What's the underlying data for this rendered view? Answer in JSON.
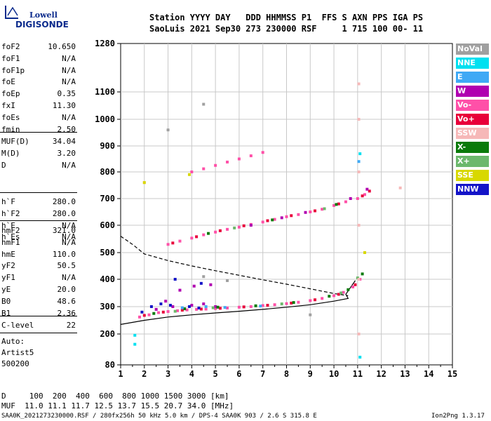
{
  "logo": {
    "line1": "Lowell",
    "line2": "DIGISONDE"
  },
  "header": {
    "line1": "Station YYYY DAY   DDD HHMMSS P1  FFS S AXN PPS IGA PS",
    "line2": "SaoLuis 2021 Sep30 273 230000 RSF     1 715 100 00- 11"
  },
  "params": {
    "group1": [
      {
        "name": "foF2",
        "value": "10.650"
      },
      {
        "name": "foF1",
        "value": "N/A"
      },
      {
        "name": "foF1p",
        "value": "N/A"
      },
      {
        "name": "foE",
        "value": "N/A"
      },
      {
        "name": "foEp",
        "value": "0.35"
      },
      {
        "name": "fxI",
        "value": "11.30"
      },
      {
        "name": "foEs",
        "value": "N/A"
      },
      {
        "name": "fmin",
        "value": "2.50"
      }
    ],
    "group2": [
      {
        "name": "MUF(D)",
        "value": "34.04"
      },
      {
        "name": "M(D)",
        "value": "3.20"
      },
      {
        "name": "D",
        "value": "N/A"
      }
    ],
    "group3": [
      {
        "name": "h`F",
        "value": "280.0"
      },
      {
        "name": "h`F2",
        "value": "280.0"
      },
      {
        "name": "h`E",
        "value": "N/A"
      },
      {
        "name": "h`Es",
        "value": "N/A"
      }
    ],
    "group4": [
      {
        "name": "hmF2",
        "value": "321.0"
      },
      {
        "name": "hmF1",
        "value": "N/A"
      },
      {
        "name": "hmE",
        "value": "110.0"
      },
      {
        "name": "yF2",
        "value": "50.5"
      },
      {
        "name": "yF1",
        "value": "N/A"
      },
      {
        "name": "yE",
        "value": "20.0"
      },
      {
        "name": "B0",
        "value": "48.6"
      },
      {
        "name": "B1",
        "value": "2.36"
      }
    ],
    "group5": [
      {
        "name": "C-level",
        "value": "22"
      }
    ],
    "auto": [
      "Auto:",
      "Artist5",
      "500200"
    ]
  },
  "legend": [
    {
      "label": "NoVal",
      "color": "#a0a0a0"
    },
    {
      "label": "NNE",
      "color": "#00e0f0"
    },
    {
      "label": "E",
      "color": "#3fa9f5"
    },
    {
      "label": "W",
      "color": "#b000b0"
    },
    {
      "label": "Vo-",
      "color": "#ff50a8"
    },
    {
      "label": "Vo+",
      "color": "#e8003a"
    },
    {
      "label": "SSW",
      "color": "#f6b8b8"
    },
    {
      "label": "X-",
      "color": "#0a7a0a"
    },
    {
      "label": "X+",
      "color": "#6cb86c"
    },
    {
      "label": "SSE",
      "color": "#d8d800"
    },
    {
      "label": "NNW",
      "color": "#1414c8"
    }
  ],
  "footer": {
    "line1": "D     100  200  400  600  800 1000 1500 3000 [km]",
    "line2": "MUF  11.0 11.1 11.7 12.5 13.7 15.5 20.7 34.0 [MHz]",
    "line3": "SAA0K_2021273230000.RSF / 280fx256h 50 kHz 5.0 km / DPS-4 SAA0K 903 / 2.6 S 315.8 E",
    "version": "Ion2Png 1.3.17"
  },
  "chart_data": {
    "type": "scatter",
    "xlim": [
      1,
      15
    ],
    "ylim": [
      80,
      1280
    ],
    "x_ticks": [
      "1",
      "2",
      "3",
      "4",
      "5",
      "6",
      "7",
      "8",
      "9",
      "10",
      "11",
      "12",
      "13",
      "14",
      "15"
    ],
    "y_ticks": [
      "80",
      "200",
      "300",
      "400",
      "500",
      "600",
      "700",
      "800",
      "900",
      "1000",
      "1100",
      "1280"
    ],
    "grid": true,
    "series": [
      {
        "name": "Vo-",
        "color": "#ff50a8",
        "points": [
          [
            1.8,
            262
          ],
          [
            2.2,
            270
          ],
          [
            2.6,
            278
          ],
          [
            3,
            282
          ],
          [
            3.4,
            285
          ],
          [
            3.8,
            288
          ],
          [
            4.2,
            290
          ],
          [
            4.6,
            291
          ],
          [
            5,
            293
          ],
          [
            5.5,
            295
          ],
          [
            6,
            298
          ],
          [
            6.5,
            300
          ],
          [
            7,
            304
          ],
          [
            7.5,
            307
          ],
          [
            8,
            311
          ],
          [
            8.5,
            316
          ],
          [
            9,
            322
          ],
          [
            9.5,
            330
          ],
          [
            10,
            340
          ],
          [
            10.4,
            352
          ],
          [
            10.8,
            372
          ],
          [
            11.1,
            400
          ],
          [
            3,
            530
          ],
          [
            3.5,
            542
          ],
          [
            4,
            553
          ],
          [
            4.5,
            565
          ],
          [
            5,
            575
          ],
          [
            5.5,
            585
          ],
          [
            6,
            593
          ],
          [
            6.5,
            603
          ],
          [
            7,
            612
          ],
          [
            7.5,
            622
          ],
          [
            8,
            632
          ],
          [
            8.5,
            640
          ],
          [
            9,
            650
          ],
          [
            9.5,
            660
          ],
          [
            10,
            674
          ],
          [
            10.5,
            688
          ],
          [
            11,
            700
          ],
          [
            11.3,
            715
          ],
          [
            4,
            800
          ],
          [
            4.5,
            812
          ],
          [
            5,
            825
          ],
          [
            5.5,
            838
          ],
          [
            6,
            850
          ],
          [
            6.5,
            862
          ],
          [
            7,
            875
          ]
        ]
      },
      {
        "name": "Vo+",
        "color": "#e8003a",
        "points": [
          [
            2,
            268
          ],
          [
            2.8,
            280
          ],
          [
            3.6,
            287
          ],
          [
            4.4,
            291
          ],
          [
            5.2,
            294
          ],
          [
            6.2,
            299
          ],
          [
            7.2,
            305
          ],
          [
            8.2,
            313
          ],
          [
            9.2,
            325
          ],
          [
            10.2,
            345
          ],
          [
            10.9,
            380
          ],
          [
            3.2,
            535
          ],
          [
            4.2,
            558
          ],
          [
            5.2,
            580
          ],
          [
            6.2,
            598
          ],
          [
            7.2,
            617
          ],
          [
            8.2,
            636
          ],
          [
            9.2,
            654
          ],
          [
            10.2,
            680
          ],
          [
            11.2,
            710
          ],
          [
            11.5,
            728
          ]
        ]
      },
      {
        "name": "W",
        "color": "#b000b0",
        "points": [
          [
            2.5,
            290
          ],
          [
            3.2,
            300
          ],
          [
            4,
            305
          ],
          [
            4.5,
            310
          ],
          [
            5,
            300
          ],
          [
            2.9,
            320
          ],
          [
            3.5,
            360
          ],
          [
            4.1,
            375
          ],
          [
            4.8,
            380
          ],
          [
            6.5,
            600
          ],
          [
            7.8,
            628
          ],
          [
            8.8,
            648
          ],
          [
            10.7,
            700
          ],
          [
            11.4,
            735
          ]
        ]
      },
      {
        "name": "X-",
        "color": "#0a7a0a",
        "points": [
          [
            2.4,
            275
          ],
          [
            3.7,
            292
          ],
          [
            5.1,
            298
          ],
          [
            6.7,
            303
          ],
          [
            8.3,
            315
          ],
          [
            9.8,
            338
          ],
          [
            10.6,
            362
          ],
          [
            11.2,
            420
          ],
          [
            4.7,
            570
          ],
          [
            7.4,
            620
          ],
          [
            10.1,
            678
          ]
        ]
      },
      {
        "name": "X+",
        "color": "#6cb86c",
        "points": [
          [
            3.3,
            283
          ],
          [
            4.9,
            296
          ],
          [
            7.8,
            310
          ],
          [
            10.3,
            350
          ],
          [
            11,
            405
          ],
          [
            5.8,
            590
          ],
          [
            9.6,
            662
          ]
        ]
      },
      {
        "name": "NNW",
        "color": "#1414c8",
        "points": [
          [
            1.9,
            280
          ],
          [
            2.3,
            300
          ],
          [
            2.7,
            310
          ],
          [
            3.1,
            305
          ],
          [
            3.9,
            300
          ],
          [
            4.3,
            295
          ],
          [
            3.3,
            400
          ],
          [
            4.4,
            385
          ]
        ]
      },
      {
        "name": "NNE",
        "color": "#00e0f0",
        "points": [
          [
            1.6,
            195
          ],
          [
            1.6,
            160
          ],
          [
            11.1,
            110
          ],
          [
            11.1,
            870
          ]
        ]
      },
      {
        "name": "E",
        "color": "#3fa9f5",
        "points": [
          [
            3.6,
            296
          ],
          [
            4.6,
            300
          ],
          [
            5.4,
            297
          ],
          [
            6.9,
            302
          ],
          [
            11.05,
            840
          ]
        ]
      },
      {
        "name": "SSW",
        "color": "#f6b8b8",
        "points": [
          [
            11.05,
            200
          ],
          [
            11.05,
            400
          ],
          [
            11.05,
            600
          ],
          [
            11.05,
            800
          ],
          [
            11.05,
            1000
          ],
          [
            11.05,
            1130
          ],
          [
            12.8,
            740
          ],
          [
            2,
            760
          ]
        ]
      },
      {
        "name": "SSE",
        "color": "#d8d800",
        "points": [
          [
            11.3,
            500
          ],
          [
            3.9,
            790
          ],
          [
            2,
            760
          ]
        ]
      },
      {
        "name": "NoVal",
        "color": "#a0a0a0",
        "points": [
          [
            4.5,
            410
          ],
          [
            5.5,
            395
          ],
          [
            9,
            270
          ],
          [
            3,
            960
          ],
          [
            4.5,
            1055
          ]
        ]
      }
    ],
    "lines": [
      {
        "style": "solid",
        "points": [
          [
            1,
            235
          ],
          [
            2,
            250
          ],
          [
            3,
            262
          ],
          [
            4,
            270
          ],
          [
            5,
            277
          ],
          [
            6,
            283
          ],
          [
            7,
            290
          ],
          [
            8,
            298
          ],
          [
            9,
            307
          ],
          [
            10,
            320
          ],
          [
            10.6,
            330
          ],
          [
            10.5,
            345
          ],
          [
            10.7,
            370
          ],
          [
            10.9,
            395
          ]
        ]
      },
      {
        "style": "dashed",
        "points": [
          [
            1,
            560
          ],
          [
            1.5,
            530
          ],
          [
            2,
            495
          ],
          [
            3,
            470
          ],
          [
            4,
            450
          ],
          [
            5,
            432
          ],
          [
            6,
            415
          ],
          [
            7,
            398
          ],
          [
            8,
            382
          ],
          [
            9,
            365
          ],
          [
            10,
            348
          ],
          [
            10.6,
            340
          ]
        ]
      }
    ]
  }
}
